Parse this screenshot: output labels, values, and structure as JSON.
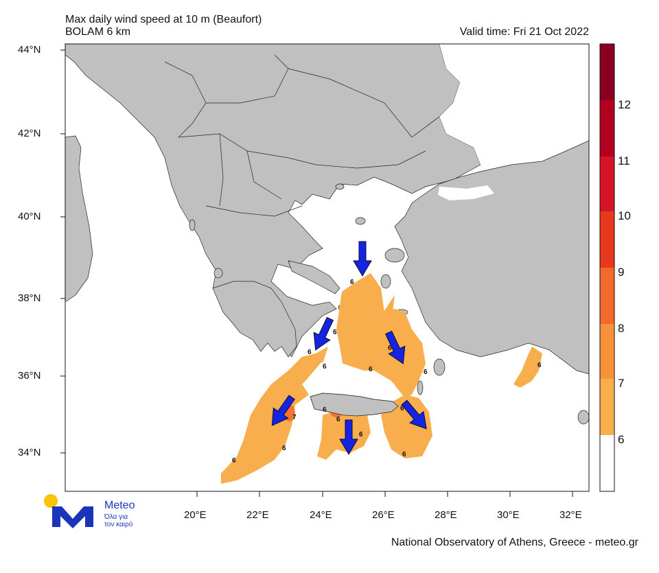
{
  "header": {
    "title": "Max daily wind speed at 10 m (Beaufort)",
    "model": "BOLAM 6 km",
    "valid_time": "Valid time: Fri 21 Oct 2022"
  },
  "axes": {
    "lat_ticks": [
      "44°N",
      "42°N",
      "40°N",
      "38°N",
      "36°N",
      "34°N"
    ],
    "lon_ticks": [
      "20°E",
      "22°E",
      "24°E",
      "26°E",
      "28°E",
      "30°E",
      "32°E"
    ]
  },
  "colorbar": {
    "labels": [
      "12",
      "11",
      "10",
      "9",
      "8",
      "7",
      "6"
    ],
    "colors": [
      "#8b0020",
      "#b3001e",
      "#d61426",
      "#e8391f",
      "#f26a2b",
      "#f7913a",
      "#f9ae4e",
      "#ffffff"
    ]
  },
  "contour_labels": [
    "6",
    "6",
    "6",
    "6",
    "6",
    "6",
    "6",
    "6",
    "6",
    "7",
    "6",
    "6",
    "6",
    "6",
    "6",
    "6"
  ],
  "wind_arrows": [
    {
      "name": "wind-arrow-north-aegean",
      "direction": "south"
    },
    {
      "name": "wind-arrow-cyclades",
      "direction": "south-west"
    },
    {
      "name": "wind-arrow-dodecanese",
      "direction": "south-east"
    },
    {
      "name": "wind-arrow-west-crete",
      "direction": "south-west"
    },
    {
      "name": "wind-arrow-central-crete",
      "direction": "south"
    },
    {
      "name": "wind-arrow-east-crete",
      "direction": "south-east"
    }
  ],
  "logo": {
    "name": "Meteo",
    "tagline_1": "Όλα για",
    "tagline_2": "τον καιρό"
  },
  "footer": "National Observatory of Athens, Greece - meteo.gr",
  "colors": {
    "land": "#c0c0c0",
    "sea": "#ffffff",
    "arrow": "#1524e0",
    "wind_6": "#f9ae4e"
  }
}
